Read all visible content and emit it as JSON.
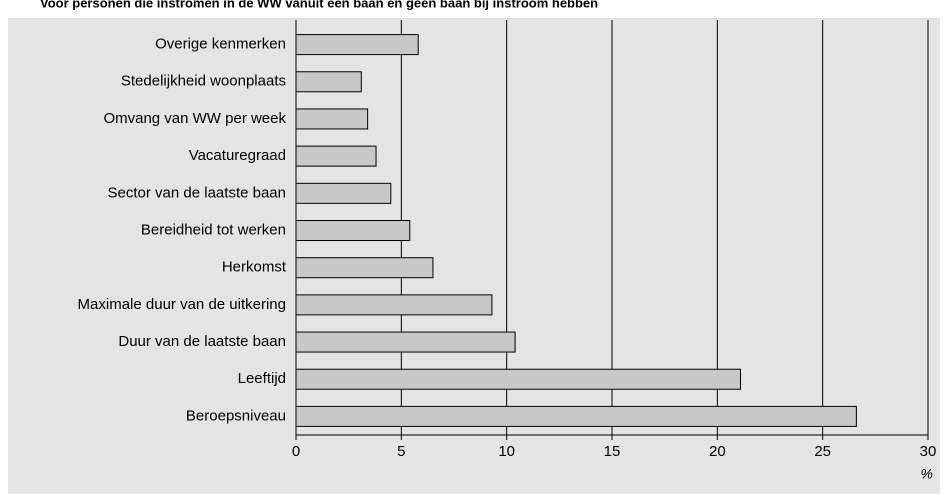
{
  "chart_data": {
    "type": "barh",
    "title": "Voor personen die instromen in de WW vanuit een baan en geen baan bij instroom hebben",
    "x_label": "%",
    "categories": [
      "Overige kenmerken",
      "Stedelijkheid woonplaats",
      "Omvang van WW per week",
      "Vacaturegraad",
      "Sector van de laatste baan",
      "Bereidheid tot werken",
      "Herkomst",
      "Maximale duur van de uitkering",
      "Duur van de laatste baan",
      "Leeftijd",
      "Beroepsniveau"
    ],
    "values": [
      5.8,
      3.1,
      3.4,
      3.8,
      4.5,
      5.4,
      6.5,
      9.3,
      10.4,
      21.1,
      26.6
    ],
    "color": "#c8c8c8",
    "xlim": [
      0,
      30
    ],
    "xticks": [
      0,
      5,
      10,
      15,
      20,
      25,
      30
    ],
    "grid": true
  }
}
